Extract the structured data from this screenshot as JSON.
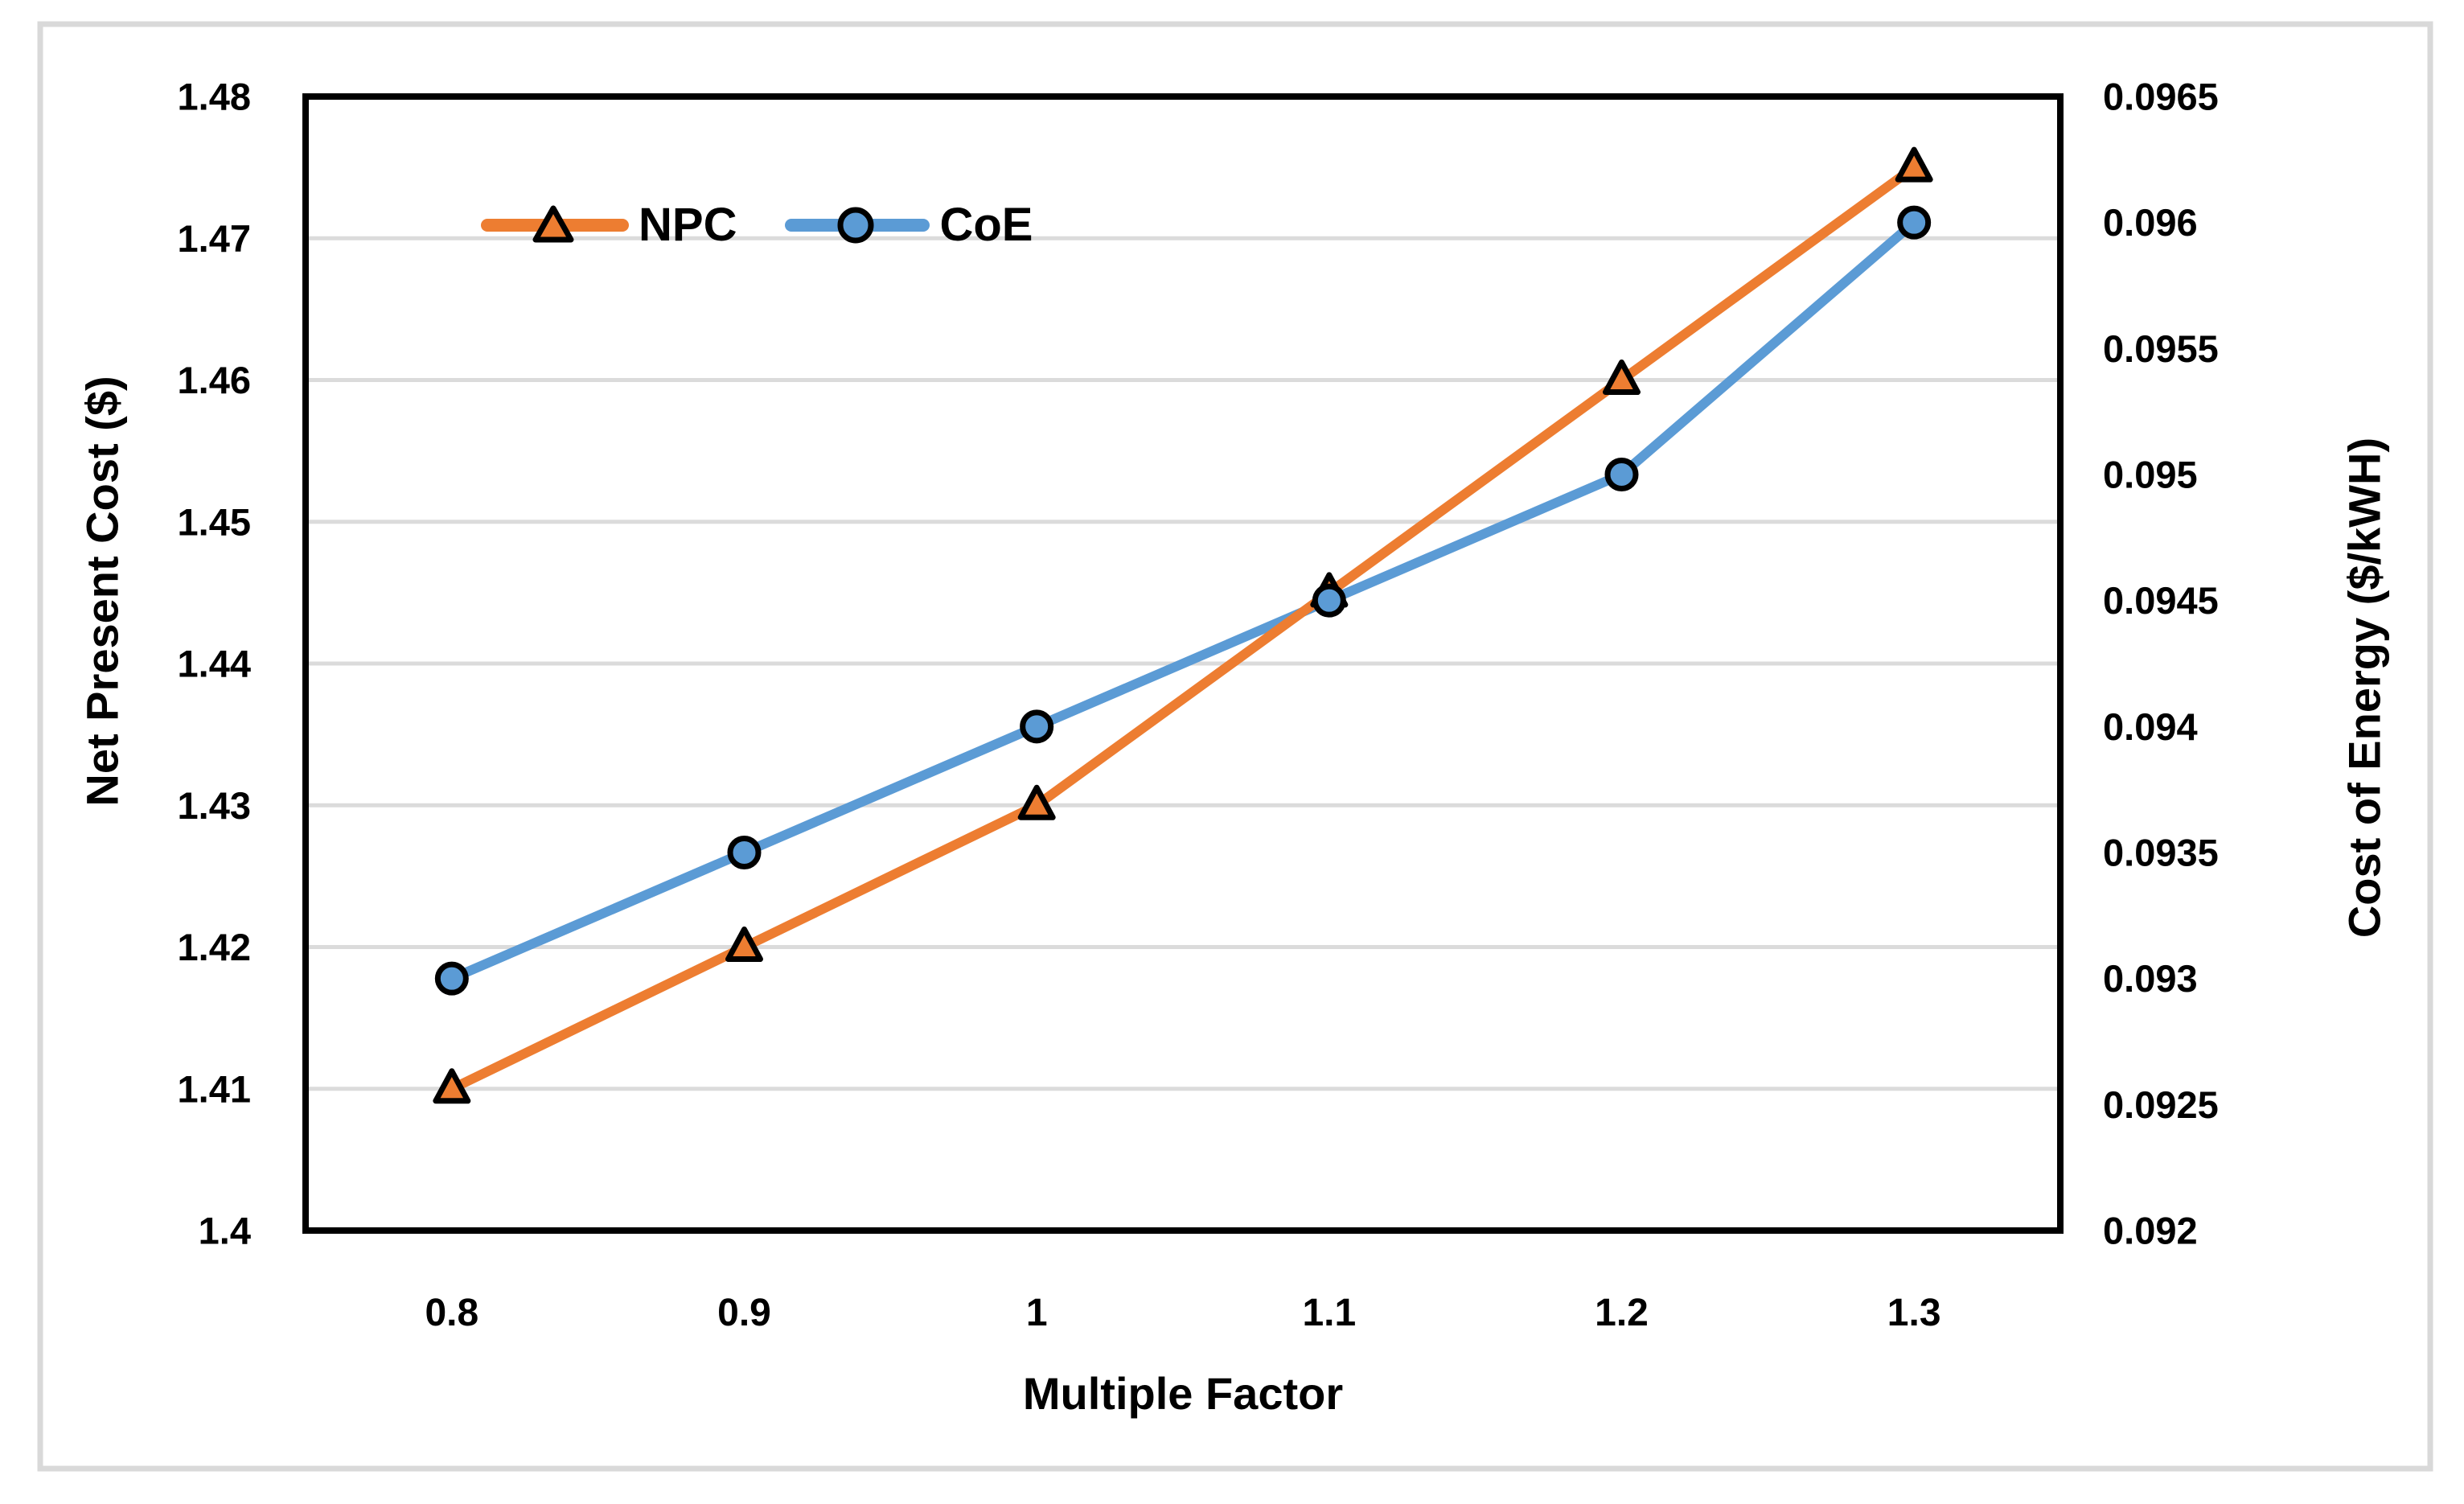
{
  "figure": {
    "background_color": "#ffffff",
    "frame_border_color": "#d9d9d9"
  },
  "chart_data": {
    "type": "line",
    "title": "",
    "xlabel": "Multiple Factor",
    "x": [
      0.8,
      0.9,
      1,
      1.1,
      1.2,
      1.3
    ],
    "x_tick_labels": [
      "0.8",
      "0.9",
      "1",
      "1.1",
      "1.2",
      "1.3"
    ],
    "series": [
      {
        "name": "NPC",
        "axis": "left",
        "color": "#ED7D31",
        "marker": "triangle",
        "values": [
          1.41,
          1.42,
          1.43,
          1.445,
          1.46,
          1.475
        ]
      },
      {
        "name": "CoE",
        "axis": "right",
        "color": "#5B9BD5",
        "marker": "circle",
        "values": [
          0.093,
          0.0935,
          0.094,
          0.0945,
          0.095,
          0.096
        ]
      }
    ],
    "left_axis": {
      "label": "Net Present Cost ($)",
      "min": 1.4,
      "max": 1.48,
      "tick_step": 0.01,
      "tick_labels": [
        "1.4",
        "1.41",
        "1.42",
        "1.43",
        "1.44",
        "1.45",
        "1.46",
        "1.47",
        "1.48"
      ]
    },
    "right_axis": {
      "label": "Cost of Energy ($/kWH)",
      "min": 0.092,
      "max": 0.0965,
      "tick_step": 0.0005,
      "tick_labels": [
        "0.092",
        "0.0925",
        "0.093",
        "0.0935",
        "0.094",
        "0.0945",
        "0.095",
        "0.0955",
        "0.096",
        "0.0965"
      ]
    },
    "grid": {
      "horizontal": true,
      "vertical": false,
      "color": "#dbdbdb"
    },
    "legend": {
      "position": "inside-top-left",
      "entries": [
        "NPC",
        "CoE"
      ]
    },
    "axis_line_color": "#000000",
    "text_color": "#000000",
    "marker_outline_color": "#000000"
  }
}
